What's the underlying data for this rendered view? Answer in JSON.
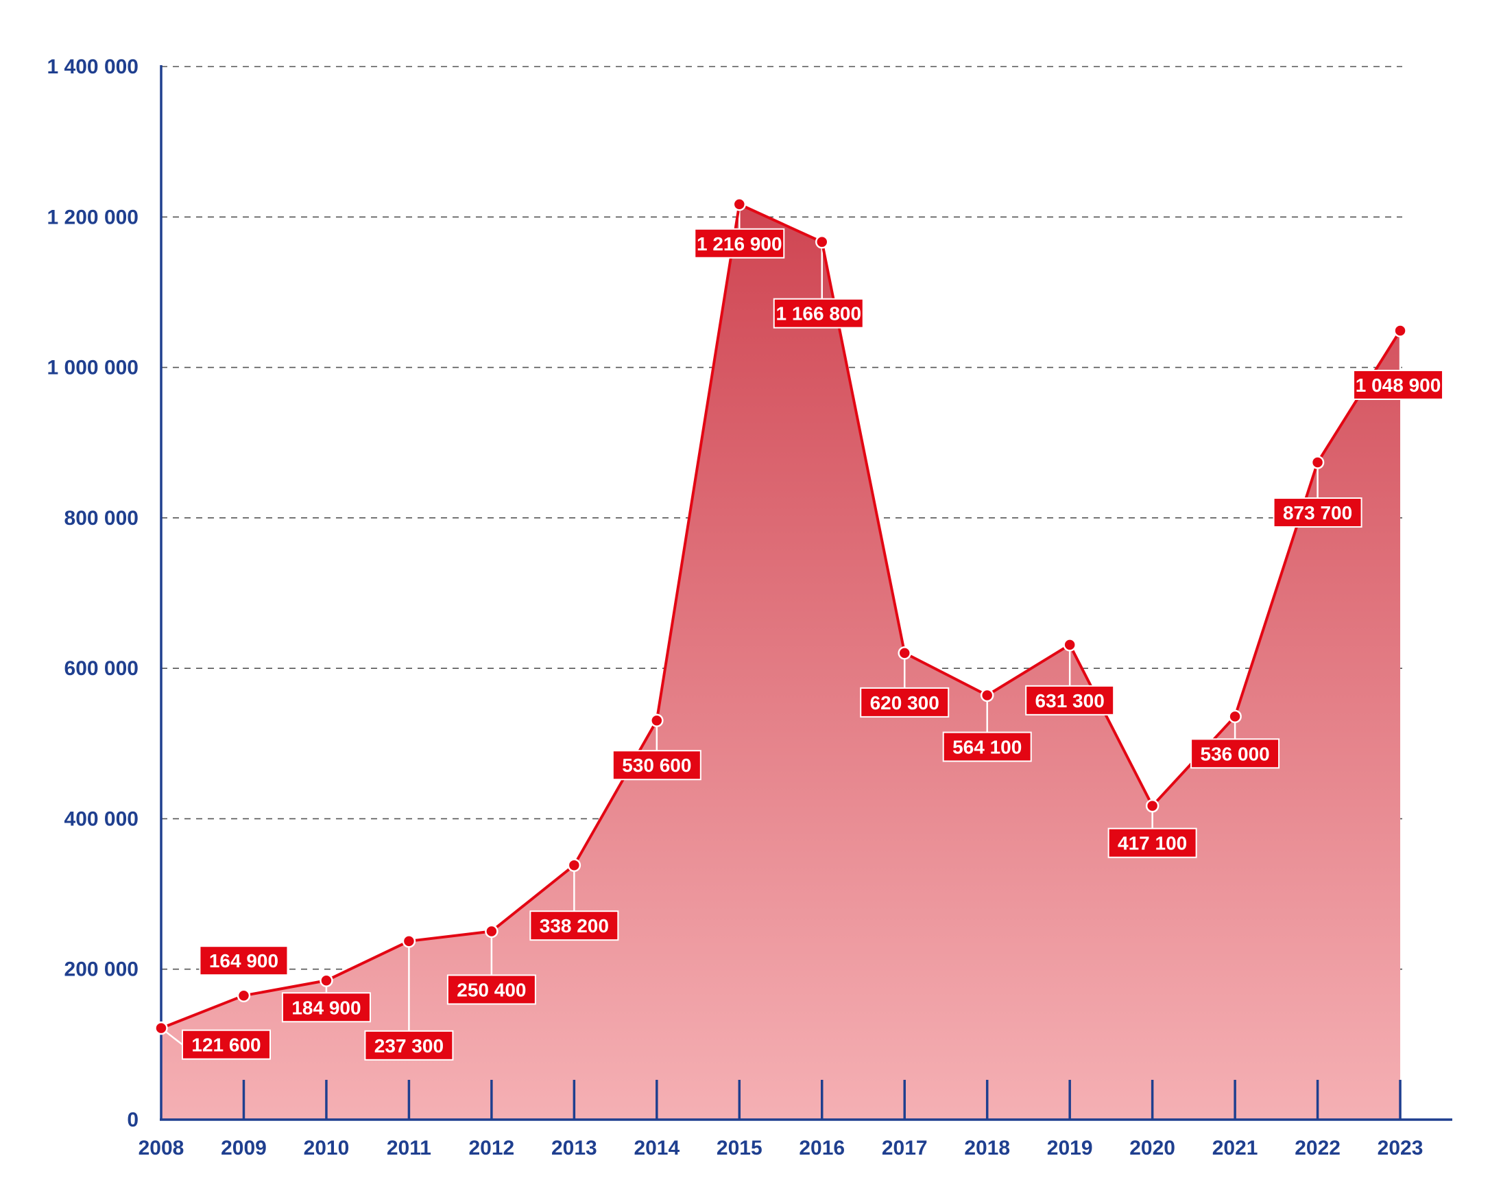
{
  "colors": {
    "axis": "#1f3f8f",
    "line": "#e30613",
    "label_box": "#e30613",
    "label_text": "#ffffff",
    "area_top": "#cf4552",
    "area_bottom": "#f5b0b4",
    "grid": "#555555"
  },
  "chart_data": {
    "type": "area",
    "x": [
      "2008",
      "2009",
      "2010",
      "2011",
      "2012",
      "2013",
      "2014",
      "2015",
      "2016",
      "2017",
      "2018",
      "2019",
      "2020",
      "2021",
      "2022",
      "2023"
    ],
    "series": [
      {
        "values": [
          121600,
          164900,
          184900,
          237300,
          250400,
          338200,
          530600,
          1216900,
          1166800,
          620300,
          564100,
          631300,
          417100,
          536000,
          873700,
          1048900
        ],
        "labels": [
          "121 600",
          "164 900",
          "184 900",
          "237 300",
          "250 400",
          "338 200",
          "530 600",
          "1 216 900",
          "1 166 800",
          "620 300",
          "564 100",
          "631 300",
          "417 100",
          "536 000",
          "873 700",
          "1 048 900"
        ]
      }
    ],
    "yticks": [
      0,
      200000,
      400000,
      600000,
      800000,
      1000000,
      1200000,
      1400000
    ],
    "ytick_labels": [
      "0",
      "200 000",
      "400 000",
      "600 000",
      "800 000",
      "1 000 000",
      "1 200 000",
      "1 400 000"
    ],
    "ylim": [
      0,
      1400000
    ],
    "grid": "dashed horizontal",
    "title": "",
    "xlabel": "",
    "ylabel": ""
  }
}
